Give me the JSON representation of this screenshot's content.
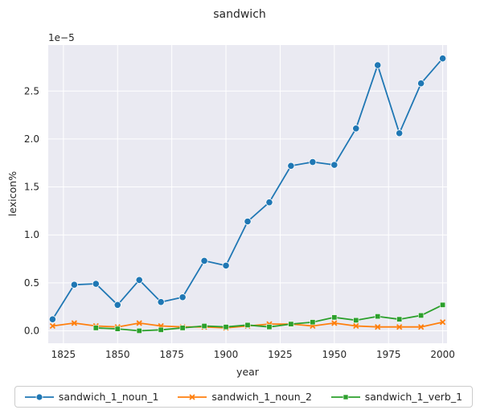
{
  "chart_data": {
    "type": "line",
    "title": "sandwich",
    "xlabel": "year",
    "ylabel": "lexicon%",
    "y_offset_label": "1e−5",
    "xlim": [
      1818,
      2002
    ],
    "ylim": [
      -0.13,
      2.98
    ],
    "x_ticks": [
      1825,
      1850,
      1875,
      1900,
      1925,
      1950,
      1975,
      2000
    ],
    "y_ticks": [
      0.0,
      0.5,
      1.0,
      1.5,
      2.0,
      2.5
    ],
    "y_tick_labels": [
      "0.0",
      "0.5",
      "1.0",
      "1.5",
      "2.0",
      "2.5"
    ],
    "grid": true,
    "legend_position": "bottom",
    "series": [
      {
        "name": "sandwich_1_noun_1",
        "color": "#1f77b4",
        "marker": "circle",
        "x": [
          1820,
          1830,
          1840,
          1850,
          1860,
          1870,
          1880,
          1890,
          1900,
          1910,
          1920,
          1930,
          1940,
          1950,
          1960,
          1970,
          1980,
          1990,
          2000
        ],
        "values": [
          0.12,
          0.48,
          0.49,
          0.27,
          0.53,
          0.3,
          0.35,
          0.73,
          0.68,
          1.14,
          1.34,
          1.72,
          1.76,
          1.73,
          2.11,
          2.77,
          2.06,
          2.58,
          2.84
        ]
      },
      {
        "name": "sandwich_1_noun_2",
        "color": "#ff7f0e",
        "marker": "x",
        "x": [
          1820,
          1830,
          1840,
          1850,
          1860,
          1870,
          1880,
          1890,
          1900,
          1910,
          1920,
          1930,
          1940,
          1950,
          1960,
          1970,
          1980,
          1990,
          2000
        ],
        "values": [
          0.05,
          0.08,
          0.05,
          0.04,
          0.08,
          0.05,
          0.04,
          0.04,
          0.03,
          0.05,
          0.07,
          0.07,
          0.05,
          0.08,
          0.05,
          0.04,
          0.04,
          0.04,
          0.09
        ]
      },
      {
        "name": "sandwich_1_verb_1",
        "color": "#2ca02c",
        "marker": "square",
        "x": [
          1840,
          1850,
          1860,
          1870,
          1880,
          1890,
          1900,
          1910,
          1920,
          1930,
          1940,
          1950,
          1960,
          1970,
          1980,
          1990,
          2000
        ],
        "values": [
          0.03,
          0.02,
          0.0,
          0.01,
          0.03,
          0.05,
          0.04,
          0.06,
          0.04,
          0.07,
          0.09,
          0.14,
          0.11,
          0.15,
          0.12,
          0.16,
          0.27
        ]
      }
    ]
  }
}
